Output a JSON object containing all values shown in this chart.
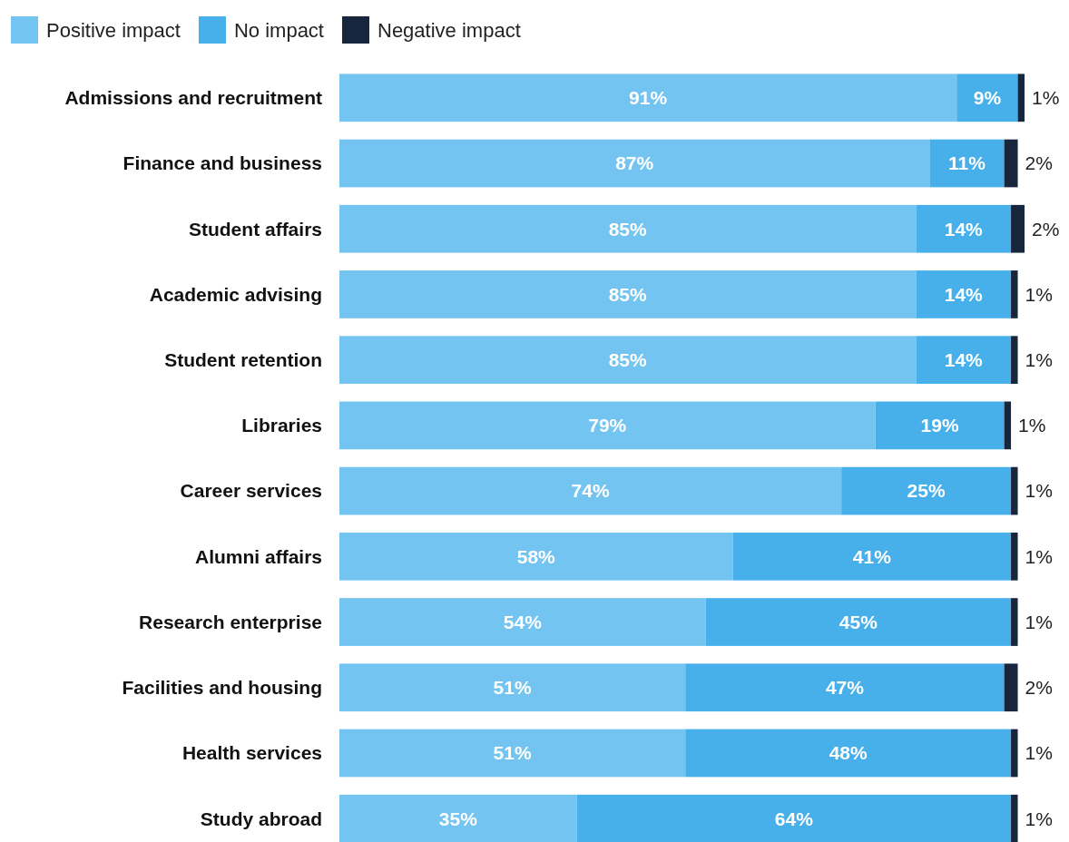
{
  "chart_data": {
    "type": "bar",
    "orientation": "horizontal",
    "stacked": true,
    "legend": "top left",
    "categories": [
      "Admissions and recruitment",
      "Finance and business",
      "Student affairs",
      "Academic advising",
      "Student retention",
      "Libraries",
      "Career services",
      "Alumni affairs",
      "Research enterprise",
      "Facilities and housing",
      "Health services",
      "Study abroad"
    ],
    "series": [
      {
        "name": "Positive impact",
        "color": "#74c4f1",
        "values": [
          91,
          87,
          85,
          85,
          85,
          79,
          74,
          58,
          54,
          51,
          51,
          35
        ],
        "value_labels": [
          "91%",
          "87%",
          "85%",
          "85%",
          "85%",
          "79%",
          "74%",
          "58%",
          "54%",
          "51%",
          "51%",
          "35%"
        ]
      },
      {
        "name": "No impact",
        "color": "#47b0ea",
        "values": [
          9,
          11,
          14,
          14,
          14,
          19,
          25,
          41,
          45,
          47,
          48,
          64
        ],
        "value_labels": [
          "9%",
          "11%",
          "14%",
          "14%",
          "14%",
          "19%",
          "25%",
          "41%",
          "45%",
          "47%",
          "48%",
          "64%"
        ]
      },
      {
        "name": "Negative impact",
        "color": "#18263d",
        "values": [
          1,
          2,
          2,
          1,
          1,
          1,
          1,
          1,
          1,
          2,
          1,
          1
        ],
        "value_labels": [
          "1%",
          "2%",
          "2%",
          "1%",
          "1%",
          "1%",
          "1%",
          "1%",
          "1%",
          "2%",
          "1%",
          "1%"
        ]
      }
    ]
  }
}
